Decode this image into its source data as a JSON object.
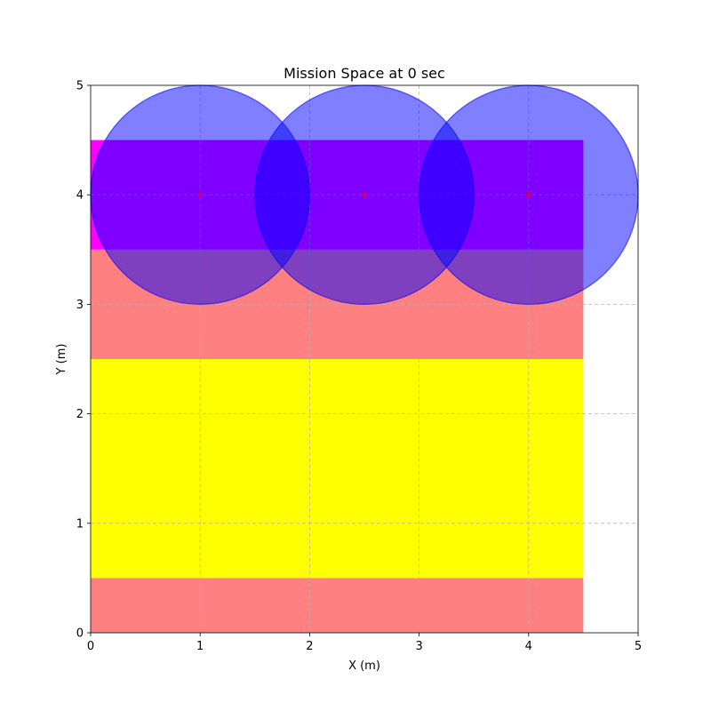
{
  "chart_data": {
    "type": "scatter",
    "title": "Mission Space at 0 sec",
    "xlabel": "X (m)",
    "ylabel": "Y (m)",
    "xlim": [
      0,
      5
    ],
    "ylim": [
      0,
      5
    ],
    "xticks": [
      "0",
      "1",
      "2",
      "3",
      "4",
      "5"
    ],
    "yticks": [
      "0",
      "1",
      "2",
      "3",
      "4",
      "5"
    ],
    "grid": true,
    "regions": [
      {
        "x0": 0,
        "x1": 4.5,
        "y0": 0,
        "y1": 0.5,
        "color": "#ff8080"
      },
      {
        "x0": 0,
        "x1": 4.5,
        "y0": 0.5,
        "y1": 2.5,
        "color": "#ffff00"
      },
      {
        "x0": 0,
        "x1": 4.5,
        "y0": 2.5,
        "y1": 3.5,
        "color": "#ff8080"
      },
      {
        "x0": 0,
        "x1": 4.5,
        "y0": 3.5,
        "y1": 4.5,
        "color": "#ff00ff"
      }
    ],
    "agents": [
      {
        "x": 1,
        "y": 4,
        "radius": 1
      },
      {
        "x": 2.5,
        "y": 4,
        "radius": 1
      },
      {
        "x": 4,
        "y": 4,
        "radius": 1
      }
    ],
    "sensing_color": "#0000ff",
    "sensing_opacity": 0.5,
    "marker": "+",
    "marker_color": "#ff0000"
  }
}
